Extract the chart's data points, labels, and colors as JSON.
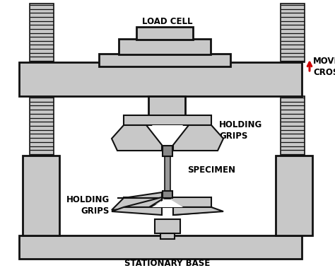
{
  "bg_color": "#ffffff",
  "gray_fill": "#c8c8c8",
  "dark_outline": "#111111",
  "red_arrow": "#cc0000",
  "text_color": "#000000",
  "label_load_cell": "LOAD CELL",
  "label_moving_crosshead": "MOVING\nCROSSHEAD",
  "label_holding_grips_top": "HOLDING\nGRIPS",
  "label_specimen": "SPECIMEN",
  "label_holding_grips_bot": "HOLDING\nGRIPS",
  "label_stationary_base": "STATIONARY BASE",
  "figsize": [
    4.74,
    3.79
  ],
  "dpi": 100
}
